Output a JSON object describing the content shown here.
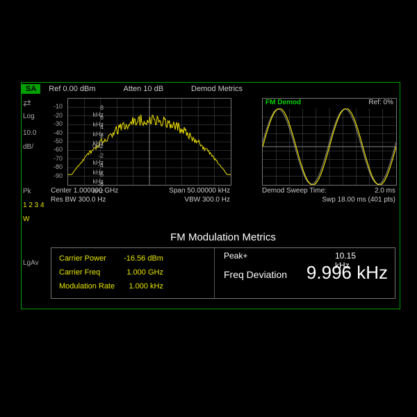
{
  "header": {
    "mode": "SA",
    "ref": "Ref 0.00 dBm",
    "atten": "Atten 10 dB",
    "demod_metrics": "Demod Metrics"
  },
  "left": {
    "log": "Log",
    "scale": "10.0",
    "unit": "dB/",
    "pk": "Pk",
    "trace": "1 2 3 4",
    "w": "W",
    "lgav": "LgAv"
  },
  "spectrum": {
    "type": "spectrum",
    "yticks": [
      -10,
      -20,
      -30,
      -40,
      -50,
      -60,
      -70,
      -80,
      -90
    ],
    "trace_color": "#f5e600",
    "grid_color": "#555555",
    "axis_color": "#888888",
    "background": "#000000",
    "center": "Center 1.000000 GHz",
    "span": "Span 50.00000 kHz",
    "rbw": "Res BW 300.0  Hz",
    "vbw": "VBW 300.0  Hz",
    "data_span": 50000,
    "noise_floor_db": -88,
    "peak_db": -24
  },
  "demod": {
    "type": "sine",
    "title": "FM Demod",
    "ref": "Ref: 0%",
    "yticks": [
      "8 kHz",
      "6 kHz",
      "4 kHz",
      "2 kHz",
      "0Hz",
      "-2 kHz",
      "-4 kHz",
      "-6 kHz",
      "-8 kHz"
    ],
    "trace_color_main": "#f5e600",
    "trace_color_ghost": "#c8c8c8",
    "grid_color": "#555555",
    "background": "#000000",
    "sweep_label": "Demod Sweep Time:",
    "sweep_value": "2.0 ms",
    "swp": "Swp 18.00 ms (401 pts)",
    "amplitude_khz": 10.0,
    "cycles": 2.0
  },
  "metrics": {
    "title": "FM Modulation Metrics",
    "label_color": "#e8e800",
    "carrier_power_label": "Carrier Power",
    "carrier_power_value": "-16.56 dBm",
    "carrier_freq_label": "Carrier Freq",
    "carrier_freq_value": "1.000 GHz",
    "mod_rate_label": "Modulation Rate",
    "mod_rate_value": "1.000 kHz",
    "peak_plus_label": "Peak+",
    "peak_plus_value": "10.15 kHz",
    "freq_dev_label": "Freq Deviation",
    "freq_dev_value": "9.996 kHz"
  }
}
